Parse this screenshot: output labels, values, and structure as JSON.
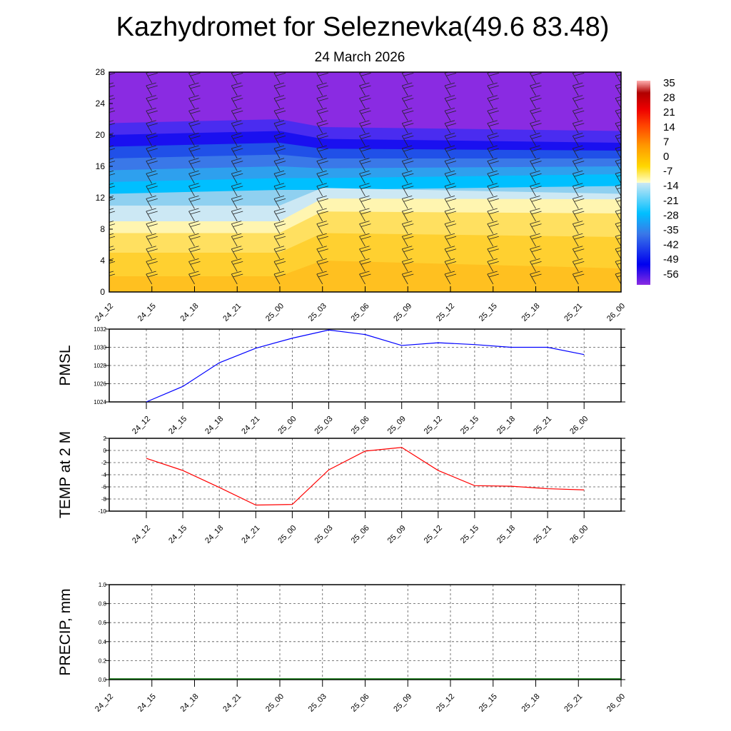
{
  "title": "Kazhydromet for Seleznevka(49.6 83.48)",
  "subtitle": "24 March 2026",
  "time_labels": [
    "24_12",
    "24_15",
    "24_18",
    "24_21",
    "25_00",
    "25_03",
    "25_06",
    "25_09",
    "25_12",
    "25_15",
    "25_18",
    "25_21",
    "26_00"
  ],
  "chart_data": [
    {
      "type": "heatmap",
      "name": "temperature-height-section",
      "y_ticks": [
        0,
        4,
        8,
        12,
        16,
        20,
        24,
        28
      ],
      "ylim": [
        0,
        28
      ],
      "x": [
        "24_12",
        "24_15",
        "24_18",
        "24_21",
        "25_00",
        "25_03",
        "25_06",
        "25_09",
        "25_12",
        "25_15",
        "25_18",
        "25_21",
        "26_00"
      ],
      "colorbar": {
        "labels": [
          "35",
          "28",
          "21",
          "14",
          "7",
          "0",
          "-7",
          "-14",
          "-21",
          "-28",
          "-35",
          "-42",
          "-49",
          "-56"
        ],
        "range": [
          -60,
          38
        ]
      },
      "overlay": "wind barbs"
    },
    {
      "type": "line",
      "ylabel": "PMSL",
      "ylim": [
        1024,
        1032
      ],
      "y_ticks": [
        "1024",
        "1026",
        "1028",
        "1030",
        "1032"
      ],
      "color": "#0000ff",
      "x": [
        "24_12",
        "24_15",
        "24_18",
        "24_21",
        "25_00",
        "25_03",
        "25_06",
        "25_09",
        "25_12",
        "25_15",
        "25_18",
        "25_21",
        "26_00"
      ],
      "values": [
        1024.0,
        1025.7,
        1028.3,
        1029.9,
        1031.0,
        1031.9,
        1031.4,
        1030.2,
        1030.5,
        1030.3,
        1030.0,
        1030.0,
        1029.2
      ]
    },
    {
      "type": "line",
      "ylabel": "TEMP at 2 M",
      "ylim": [
        -10,
        2
      ],
      "y_ticks": [
        "-10",
        "-8",
        "-6",
        "-4",
        "-2",
        "0",
        "2"
      ],
      "color": "#ff0000",
      "x": [
        "24_12",
        "24_15",
        "24_18",
        "24_21",
        "25_00",
        "25_03",
        "25_06",
        "25_09",
        "25_12",
        "25_15",
        "25_18",
        "25_21",
        "26_00"
      ],
      "values": [
        -1.3,
        -3.3,
        -6.1,
        -9.0,
        -8.9,
        -3.2,
        -0.1,
        0.5,
        -3.3,
        -5.8,
        -5.9,
        -6.3,
        -6.5
      ]
    },
    {
      "type": "bar",
      "ylabel": "PRECIP, mm",
      "ylim": [
        0,
        1
      ],
      "y_ticks": [
        "0.0",
        "0.2",
        "0.4",
        "0.6",
        "0.8",
        "1.0"
      ],
      "color": "#006400",
      "x": [
        "24_12",
        "24_15",
        "24_18",
        "24_21",
        "25_00",
        "25_03",
        "25_06",
        "25_09",
        "25_12",
        "25_15",
        "25_18",
        "25_21",
        "26_00"
      ],
      "values": [
        0,
        0,
        0,
        0,
        0,
        0,
        0,
        0,
        0,
        0,
        0,
        0,
        0
      ]
    }
  ]
}
